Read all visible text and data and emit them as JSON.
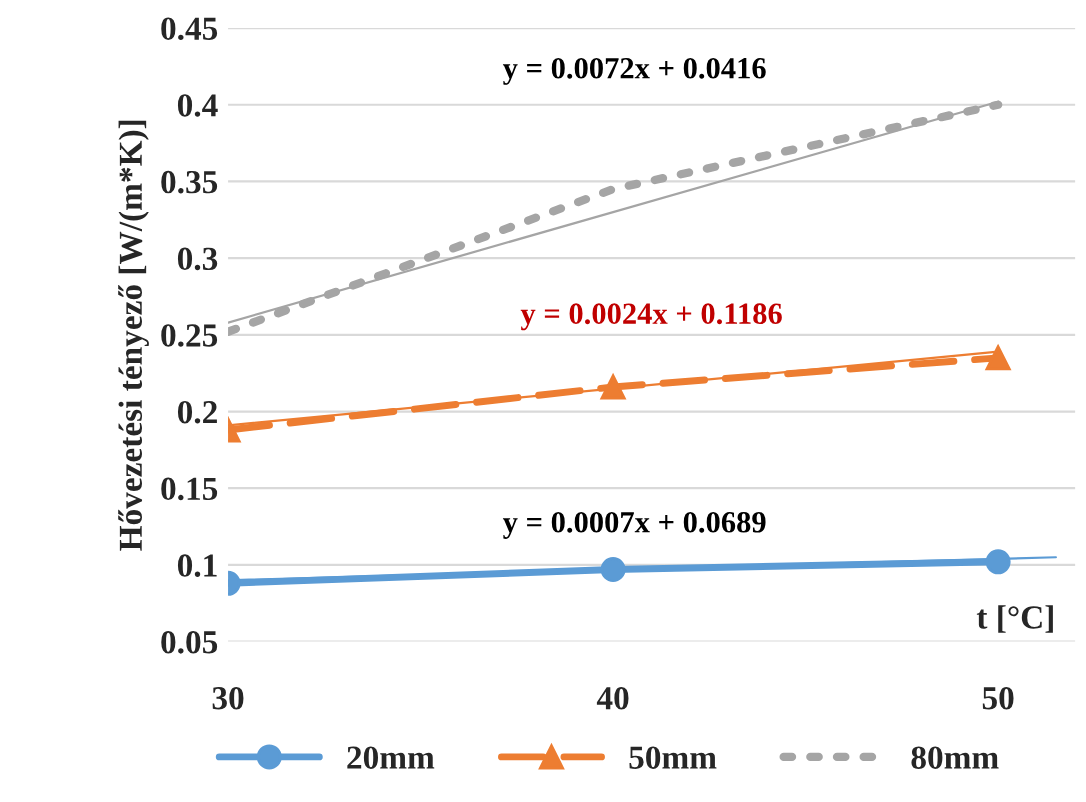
{
  "chart_data": {
    "type": "line",
    "ylabel": "Hővezetési tényező [W/(m*K)]",
    "xlabel": "t [°C]",
    "x": [
      30,
      40,
      50
    ],
    "series": [
      {
        "name": "20mm",
        "color": "#5b9bd5",
        "values": [
          0.088,
          0.097,
          0.102
        ],
        "marker": "circle",
        "line_style": "solid"
      },
      {
        "name": "50mm",
        "color": "#ed7d31",
        "values": [
          0.188,
          0.216,
          0.235
        ],
        "marker": "triangle",
        "line_style": "dashed"
      },
      {
        "name": "80mm",
        "color": "#a5a5a5",
        "values": [
          0.252,
          0.345,
          0.4
        ],
        "marker": "none",
        "line_style": "dotted"
      },
      {
        "type": "line",
        "color": "#5b9bd5",
        "x": [
          30,
          51.5
        ],
        "values": [
          0.09,
          0.105
        ],
        "marker": "none",
        "line_style": "solid"
      },
      {
        "type": "line",
        "color": "#ed7d31",
        "x": [
          30,
          50
        ],
        "values": [
          0.191,
          0.239
        ],
        "marker": "none",
        "line_style": "solid"
      },
      {
        "type": "line",
        "color": "#a5a5a5",
        "x": [
          30,
          50
        ],
        "values": [
          0.258,
          0.402
        ],
        "marker": "none",
        "line_style": "solid"
      }
    ],
    "annotations": [
      "y = 0.0072x + 0.0416",
      "y = 0.0024x + 0.1186",
      "y = 0.0007x + 0.0689"
    ],
    "xlim": [
      30,
      52
    ],
    "xticks": [
      30,
      40,
      50
    ],
    "ylim": [
      0.05,
      0.45
    ],
    "yticks": [
      0.05,
      0.1,
      0.15,
      0.2,
      0.25,
      0.3,
      0.35,
      0.4,
      0.45
    ],
    "grid": "y",
    "legend": "bottom"
  }
}
